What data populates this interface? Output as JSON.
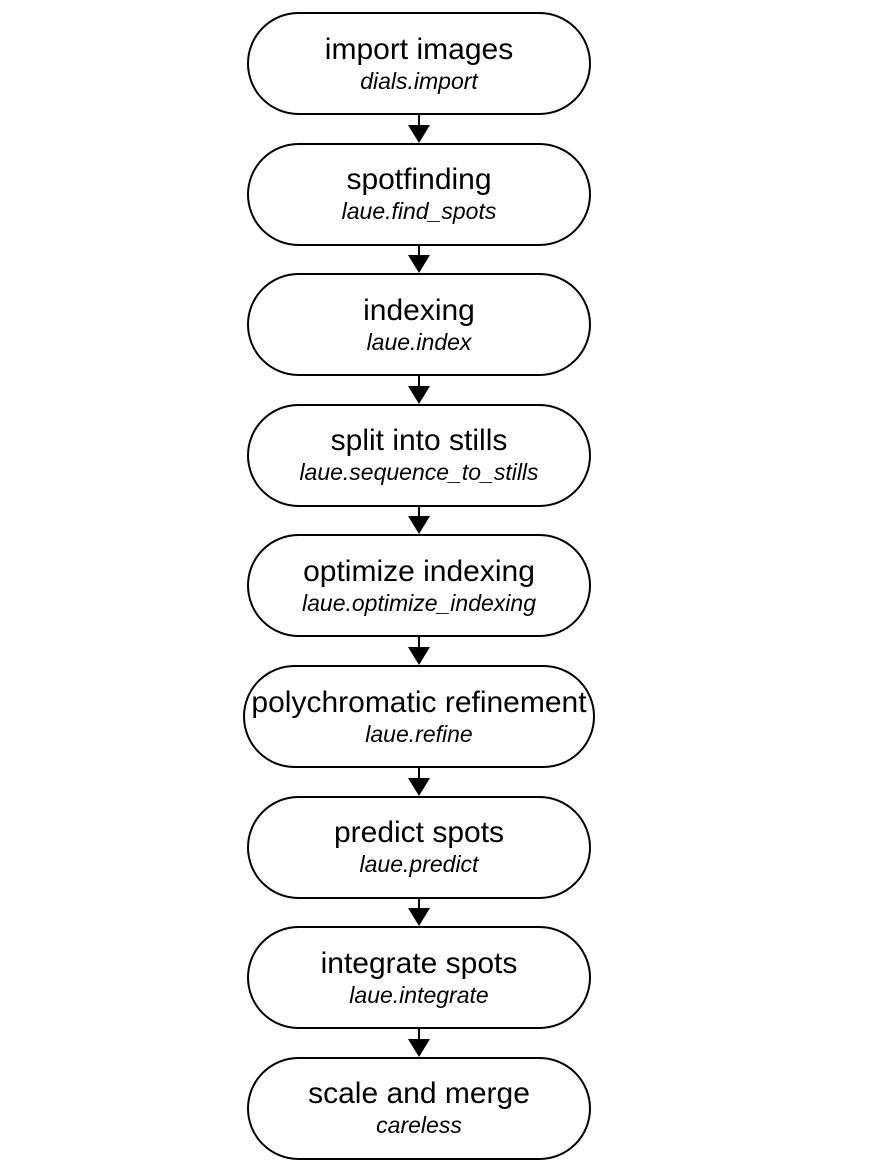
{
  "workflow": {
    "steps": [
      {
        "title": "import images",
        "command": "dials.import"
      },
      {
        "title": "spotfinding",
        "command": "laue.find_spots"
      },
      {
        "title": "indexing",
        "command": "laue.index"
      },
      {
        "title": "split into stills",
        "command": "laue.sequence_to_stills"
      },
      {
        "title": "optimize indexing",
        "command": "laue.optimize_indexing"
      },
      {
        "title": "polychromatic refinement",
        "command": "laue.refine"
      },
      {
        "title": "predict spots",
        "command": "laue.predict"
      },
      {
        "title": "integrate spots",
        "command": "laue.integrate"
      },
      {
        "title": "scale and merge",
        "command": "careless"
      }
    ]
  }
}
